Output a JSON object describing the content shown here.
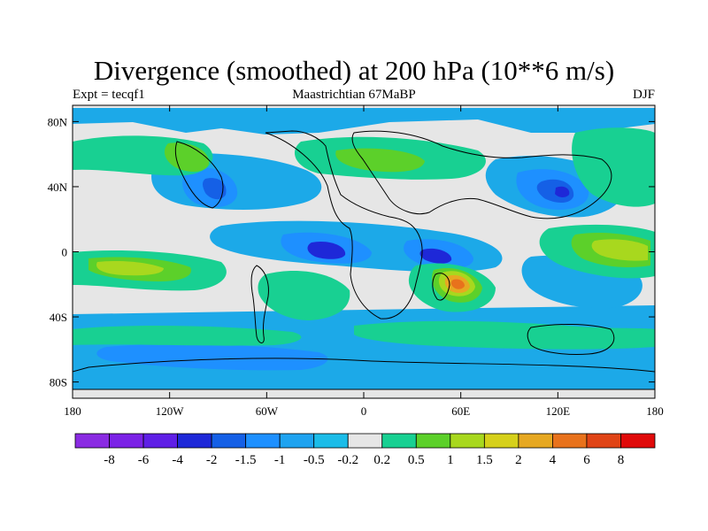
{
  "title": "Divergence (smoothed) at 200 hPa (10**6 m/s)",
  "left_label": "Expt = tecqf1",
  "center_label": "Maastrichtian 67MaBP",
  "right_label": "DJF",
  "y_ticks": [
    {
      "label": "80N",
      "lat": 80
    },
    {
      "label": "40N",
      "lat": 40
    },
    {
      "label": "0",
      "lat": 0
    },
    {
      "label": "40S",
      "lat": -40
    },
    {
      "label": "80S",
      "lat": -80
    }
  ],
  "x_ticks": [
    {
      "label": "180",
      "lon": -180
    },
    {
      "label": "120W",
      "lon": -120
    },
    {
      "label": "60W",
      "lon": -60
    },
    {
      "label": "0",
      "lon": 0
    },
    {
      "label": "60E",
      "lon": 60
    },
    {
      "label": "120E",
      "lon": 120
    },
    {
      "label": "180",
      "lon": 180
    }
  ],
  "colorbar": {
    "colors": [
      "#8a2be2",
      "#7b22e6",
      "#5f1fe6",
      "#1e28d8",
      "#1560e6",
      "#1e90ff",
      "#1fa3f0",
      "#1cbce8",
      "#e6e6e6",
      "#18d092",
      "#5cd02a",
      "#a8d81e",
      "#d6d01a",
      "#e6a822",
      "#e8721c",
      "#e04416",
      "#e00a0a"
    ],
    "labels": [
      "-8",
      "-6",
      "-4",
      "-2",
      "-1.5",
      "-1",
      "-0.5",
      "-0.2",
      "0.2",
      "0.5",
      "1",
      "1.5",
      "2",
      "4",
      "6",
      "8"
    ]
  }
}
